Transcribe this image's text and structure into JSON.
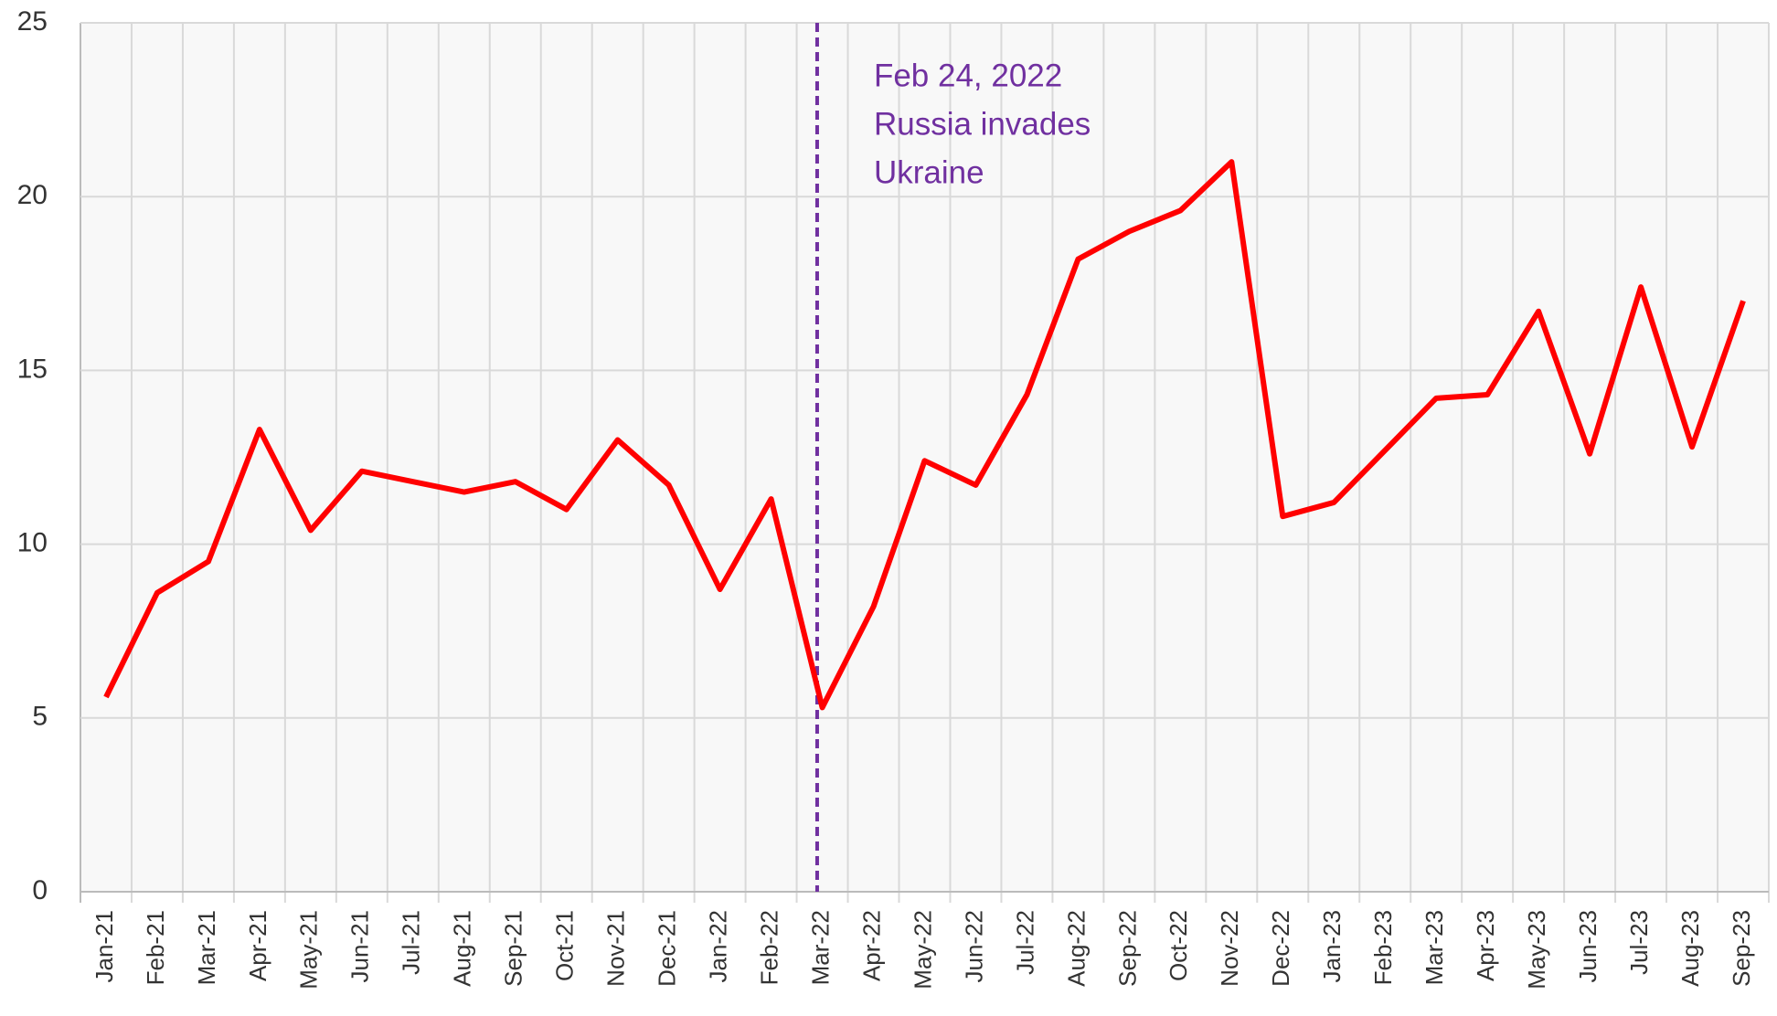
{
  "chart_data": {
    "type": "line",
    "categories": [
      "Jan-21",
      "Feb-21",
      "Mar-21",
      "Apr-21",
      "May-21",
      "Jun-21",
      "Jul-21",
      "Aug-21",
      "Sep-21",
      "Oct-21",
      "Nov-21",
      "Dec-21",
      "Jan-22",
      "Feb-22",
      "Mar-22",
      "Apr-22",
      "May-22",
      "Jun-22",
      "Jul-22",
      "Aug-22",
      "Sep-22",
      "Oct-22",
      "Nov-22",
      "Dec-22",
      "Jan-23",
      "Feb-23",
      "Mar-23",
      "Apr-23",
      "May-23",
      "Jun-23",
      "Jul-23",
      "Aug-23",
      "Sep-23"
    ],
    "values": [
      5.6,
      8.6,
      9.5,
      13.3,
      10.4,
      12.1,
      11.8,
      11.5,
      11.8,
      11.0,
      13.0,
      11.7,
      8.7,
      11.3,
      5.3,
      8.2,
      12.4,
      11.7,
      14.3,
      18.2,
      19.0,
      19.6,
      21.0,
      10.8,
      11.2,
      12.7,
      14.2,
      14.3,
      16.7,
      12.6,
      17.4,
      12.8,
      17.0
    ],
    "color": "#ff0000",
    "ylim": [
      0,
      25
    ],
    "yticks": [
      0,
      5,
      10,
      15,
      20,
      25
    ],
    "grid": true,
    "annotation": {
      "lines": [
        "Feb 24, 2022",
        "Russia invades",
        "Ukraine"
      ],
      "color": "#7030a0"
    }
  }
}
